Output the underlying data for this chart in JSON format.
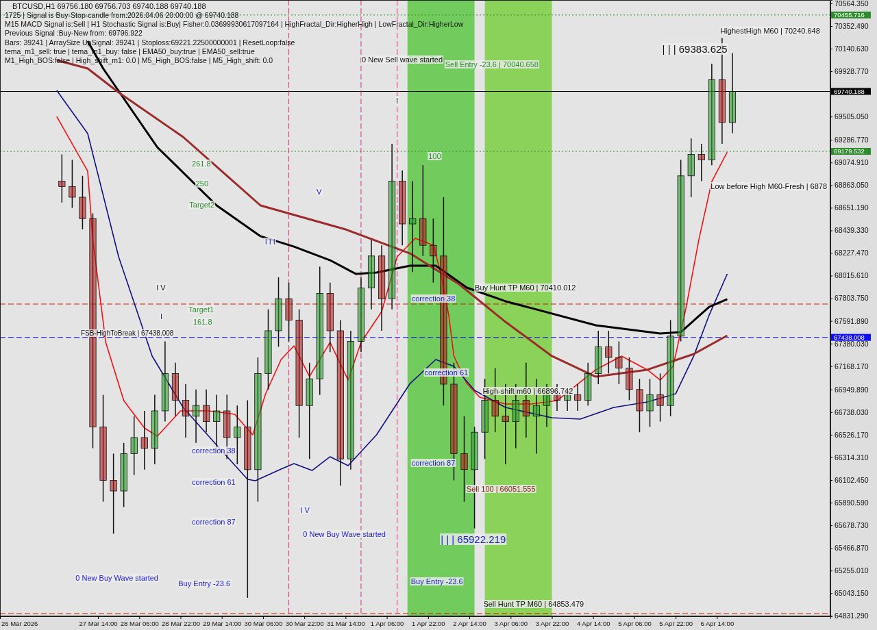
{
  "chart_data": {
    "type": "candlestick",
    "title": "BTCUSD,H1  69756.180 69756.703 69740.188 69740.188",
    "x": [
      "2026-03-27T00:00",
      "2026-03-27T04:00",
      "2026-03-27T08:00",
      "2026-03-27T12:00",
      "2026-03-27T16:00",
      "2026-03-27T20:00",
      "2026-03-28T00:00",
      "2026-03-28T04:00",
      "2026-03-28T08:00",
      "2026-03-28T12:00",
      "2026-03-28T16:00",
      "2026-03-28T20:00",
      "2026-03-29T00:00",
      "2026-03-29T04:00",
      "2026-03-29T08:00",
      "2026-03-29T12:00",
      "2026-03-29T16:00",
      "2026-03-29T20:00",
      "2026-03-30T00:00",
      "2026-03-30T04:00",
      "2026-03-30T08:00",
      "2026-03-30T12:00",
      "2026-03-30T16:00",
      "2026-03-30T20:00",
      "2026-03-31T00:00",
      "2026-03-31T04:00",
      "2026-03-31T08:00",
      "2026-03-31T12:00",
      "2026-03-31T16:00",
      "2026-03-31T20:00",
      "2026-04-01T00:00",
      "2026-04-01T04:00",
      "2026-04-01T08:00",
      "2026-04-01T12:00",
      "2026-04-01T16:00",
      "2026-04-01T20:00",
      "2026-04-02T00:00",
      "2026-04-02T04:00",
      "2026-04-02T08:00",
      "2026-04-02T12:00",
      "2026-04-02T16:00",
      "2026-04-02T20:00",
      "2026-04-03T00:00",
      "2026-04-03T04:00",
      "2026-04-03T08:00",
      "2026-04-03T12:00",
      "2026-04-03T16:00",
      "2026-04-03T20:00",
      "2026-04-04T00:00",
      "2026-04-04T04:00",
      "2026-04-04T08:00",
      "2026-04-04T12:00",
      "2026-04-04T16:00",
      "2026-04-04T20:00",
      "2026-04-05T00:00",
      "2026-04-05T04:00",
      "2026-04-05T08:00",
      "2026-04-05T12:00",
      "2026-04-05T16:00",
      "2026-04-05T20:00",
      "2026-04-06T00:00",
      "2026-04-06T04:00",
      "2026-04-06T08:00",
      "2026-04-06T12:00",
      "2026-04-06T16:00",
      "2026-04-06T20:00"
    ],
    "ohlc": [
      [
        68900,
        69150,
        68700,
        68850
      ],
      [
        68850,
        69100,
        68650,
        68750
      ],
      [
        68750,
        68950,
        68450,
        68550
      ],
      [
        68550,
        68600,
        66400,
        66600
      ],
      [
        66600,
        66900,
        65900,
        66100
      ],
      [
        66100,
        66350,
        65600,
        66000
      ],
      [
        66000,
        66450,
        65850,
        66350
      ],
      [
        66350,
        66700,
        66150,
        66500
      ],
      [
        66500,
        66750,
        66200,
        66400
      ],
      [
        66400,
        66900,
        66250,
        66750
      ],
      [
        66750,
        67400,
        66650,
        67100
      ],
      [
        67100,
        67200,
        66700,
        66850
      ],
      [
        66850,
        67000,
        66500,
        66700
      ],
      [
        66700,
        66950,
        66450,
        66800
      ],
      [
        66800,
        66950,
        66550,
        66650
      ],
      [
        66650,
        66900,
        66400,
        66750
      ],
      [
        66750,
        66900,
        66300,
        66500
      ],
      [
        66500,
        66800,
        66250,
        66600
      ],
      [
        66600,
        66850,
        65000,
        66200
      ],
      [
        66200,
        67250,
        65900,
        67100
      ],
      [
        67100,
        67700,
        66950,
        67500
      ],
      [
        67500,
        68000,
        67350,
        67800
      ],
      [
        67800,
        67950,
        67400,
        67600
      ],
      [
        67600,
        67700,
        66500,
        66800
      ],
      [
        66800,
        67200,
        66300,
        67050
      ],
      [
        67050,
        68100,
        66900,
        67850
      ],
      [
        67850,
        67950,
        67300,
        67500
      ],
      [
        67500,
        67600,
        66050,
        66300
      ],
      [
        66300,
        67500,
        66200,
        67400
      ],
      [
        67400,
        68000,
        67300,
        67900
      ],
      [
        67900,
        68350,
        67700,
        68200
      ],
      [
        68200,
        68300,
        67500,
        67800
      ],
      [
        67800,
        69250,
        67700,
        68900
      ],
      [
        68900,
        69000,
        68300,
        68500
      ],
      [
        68500,
        68900,
        68050,
        68550
      ],
      [
        68550,
        69050,
        68200,
        68300
      ],
      [
        68300,
        68550,
        67950,
        68200
      ],
      [
        68200,
        68750,
        66800,
        67000
      ],
      [
        67000,
        67200,
        66100,
        66350
      ],
      [
        66350,
        66700,
        65900,
        66200
      ],
      [
        66200,
        66600,
        65650,
        66550
      ],
      [
        66550,
        67050,
        66300,
        66850
      ],
      [
        66850,
        67150,
        66550,
        66700
      ],
      [
        66700,
        67000,
        66250,
        66650
      ],
      [
        66650,
        67000,
        66400,
        66850
      ],
      [
        66850,
        67200,
        66500,
        66700
      ],
      [
        66700,
        67050,
        66350,
        66800
      ],
      [
        66800,
        67000,
        66600,
        66900
      ],
      [
        66900,
        67000,
        66750,
        66850
      ],
      [
        66850,
        66950,
        66750,
        66900
      ],
      [
        66900,
        67000,
        66750,
        66850
      ],
      [
        66850,
        67200,
        66800,
        67100
      ],
      [
        67100,
        67500,
        67000,
        67350
      ],
      [
        67350,
        67500,
        67100,
        67250
      ],
      [
        67250,
        67400,
        67000,
        67150
      ],
      [
        67150,
        67250,
        66850,
        66950
      ],
      [
        66950,
        67050,
        66550,
        66750
      ],
      [
        66750,
        67050,
        66600,
        66900
      ],
      [
        66900,
        67100,
        66650,
        66800
      ],
      [
        66800,
        67600,
        66700,
        67450
      ],
      [
        67450,
        69100,
        67400,
        68950
      ],
      [
        68950,
        69300,
        68750,
        69150
      ],
      [
        69150,
        69250,
        68900,
        69100
      ],
      [
        69100,
        70000,
        69050,
        69850
      ],
      [
        69850,
        70240.648,
        69250,
        69450
      ],
      [
        69450,
        70100,
        69350,
        69740.188
      ]
    ],
    "series": [
      {
        "type": "line",
        "color": "#ee1111",
        "x": [
          "2026-03-26T22:00",
          "2026-03-27T10:00",
          "2026-03-27T12:00",
          "2026-03-27T17:00",
          "2026-03-28T00:00",
          "2026-03-28T08:00",
          "2026-03-28T13:00",
          "2026-03-28T22:00",
          "2026-03-29T09:00",
          "2026-03-29T19:00",
          "2026-03-30T02:00",
          "2026-03-30T07:00",
          "2026-03-30T13:00",
          "2026-03-30T18:00",
          "2026-03-31T00:00",
          "2026-03-31T08:00",
          "2026-03-31T15:00",
          "2026-03-31T20:00",
          "2026-04-01T04:00",
          "2026-04-01T10:00",
          "2026-04-01T17:00",
          "2026-04-02T00:00",
          "2026-04-02T03:00",
          "2026-04-02T06:00",
          "2026-04-02T08:00",
          "2026-04-02T13:00",
          "2026-04-02T18:00",
          "2026-04-03T04:00",
          "2026-04-03T14:00",
          "2026-04-04T00:00",
          "2026-04-04T15:00",
          "2026-04-05T01:00",
          "2026-04-05T11:00",
          "2026-04-05T16:00",
          "2026-04-05T21:00",
          "2026-04-06T02:00",
          "2026-04-06T07:00",
          "2026-04-06T12:00",
          "2026-04-06T18:00"
        ],
        "values": [
          69506,
          68994,
          68353,
          67391,
          66846,
          66590,
          66513,
          66750,
          66750,
          66718,
          66526,
          66910,
          67231,
          67359,
          67071,
          67391,
          67038,
          67391,
          67679,
          68192,
          68365,
          68301,
          68032,
          67647,
          67263,
          67006,
          66878,
          66814,
          66814,
          66846,
          67135,
          67263,
          67135,
          67038,
          67167,
          67712,
          68353,
          68897,
          69173
        ]
      },
      {
        "type": "line",
        "color": "#101080",
        "x": [
          "2026-03-26T22:00",
          "2026-03-27T10:00",
          "2026-03-27T22:00",
          "2026-03-28T11:00",
          "2026-03-28T23:00",
          "2026-03-29T12:00",
          "2026-03-30T00:00",
          "2026-03-30T03:00",
          "2026-03-30T13:00",
          "2026-03-30T18:00",
          "2026-03-31T01:00",
          "2026-03-31T08:00",
          "2026-03-31T15:00",
          "2026-04-01T02:00",
          "2026-04-01T15:00",
          "2026-04-02T01:00",
          "2026-04-02T08:00",
          "2026-04-02T16:00",
          "2026-04-03T04:00",
          "2026-04-03T22:00",
          "2026-04-04T09:00",
          "2026-04-04T22:00",
          "2026-04-05T11:00",
          "2026-04-05T22:00",
          "2026-04-06T05:00",
          "2026-04-06T11:00",
          "2026-04-06T18:00"
        ],
        "values": [
          69750,
          69346,
          68192,
          67263,
          66782,
          66430,
          66109,
          66096,
          66205,
          66256,
          66192,
          66321,
          66237,
          66526,
          67006,
          67231,
          67167,
          66942,
          66782,
          66686,
          66673,
          66782,
          66833,
          66910,
          67263,
          67647,
          68032
        ]
      },
      {
        "type": "line",
        "color": "#000000",
        "x": [
          "2026-03-27T10:00",
          "2026-03-27T16:00",
          "2026-03-28T13:00",
          "2026-03-29T12:00",
          "2026-03-30T05:00",
          "2026-03-30T18:00",
          "2026-03-31T08:00",
          "2026-03-31T18:00",
          "2026-04-01T02:00",
          "2026-04-01T15:00",
          "2026-04-02T01:00",
          "2026-04-02T13:00",
          "2026-04-03T04:00",
          "2026-04-03T14:00",
          "2026-04-04T15:00",
          "2026-04-05T16:00",
          "2026-04-06T00:00",
          "2026-04-06T11:00",
          "2026-04-06T18:00"
        ],
        "values": [
          70211,
          69955,
          69218,
          68673,
          68385,
          68288,
          68160,
          68032,
          68045,
          68109,
          68109,
          67904,
          67776,
          67712,
          67551,
          67474,
          67487,
          67724,
          67795
        ]
      },
      {
        "type": "line",
        "color": "#9b2c2c",
        "x": [
          "2026-03-26T22:00",
          "2026-03-27T10:00",
          "2026-03-27T22:00",
          "2026-03-28T23:00",
          "2026-03-30T05:00",
          "2026-03-31T14:00",
          "2026-04-01T15:00",
          "2026-04-02T10:00",
          "2026-04-03T04:00",
          "2026-04-03T22:00",
          "2026-04-04T15:00",
          "2026-04-05T11:00",
          "2026-04-06T05:00",
          "2026-04-06T18:00"
        ],
        "values": [
          70032,
          69955,
          69731,
          69314,
          68673,
          68449,
          68224,
          67936,
          67583,
          67263,
          67070,
          67135,
          67282,
          67455
        ]
      }
    ],
    "xlim": [
      "2026-03-26T00:00",
      "2026-04-08T10:00"
    ],
    "xticks": [
      {
        "value": "2026-03-26",
        "label": "26 Mar 2026"
      },
      {
        "value": "2026-03-27T14:00",
        "label": "27 Mar 14:00"
      },
      {
        "value": "2026-03-28T06:00",
        "label": "28 Mar 06:00"
      },
      {
        "value": "2026-03-28T22:00",
        "label": "28 Mar 22:00"
      },
      {
        "value": "2026-03-29T14:00",
        "label": "29 Mar 14:00"
      },
      {
        "value": "2026-03-30T06:00",
        "label": "30 Mar 06:00"
      },
      {
        "value": "2026-03-30T22:00",
        "label": "30 Mar 22:00"
      },
      {
        "value": "2026-03-31T14:00",
        "label": "31 Mar 14:00"
      },
      {
        "value": "2026-04-01T06:00",
        "label": "1 Apr 06:00"
      },
      {
        "value": "2026-04-01T22:00",
        "label": "1 Apr 22:00"
      },
      {
        "value": "2026-04-02T14:00",
        "label": "2 Apr 14:00"
      },
      {
        "value": "2026-04-03T06:00",
        "label": "3 Apr 06:00"
      },
      {
        "value": "2026-04-03T22:00",
        "label": "3 Apr 22:00"
      },
      {
        "value": "2026-04-04T14:00",
        "label": "4 Apr 14:00"
      },
      {
        "value": "2026-04-05T06:00",
        "label": "5 Apr 06:00"
      },
      {
        "value": "2026-04-05T22:00",
        "label": "5 Apr 22:00"
      },
      {
        "value": "2026-04-06T14:00",
        "label": "6 Apr 14:00"
      }
    ],
    "ylim": [
      64827,
      70596
    ],
    "yticks": [
      {
        "value": 70564.35,
        "label": "70564.350"
      },
      {
        "value": 70352.49,
        "label": "70352.490"
      },
      {
        "value": 70140.63,
        "label": "70140.630"
      },
      {
        "value": 69928.77,
        "label": "69928.770"
      },
      {
        "value": 69505.05,
        "label": "69505.050"
      },
      {
        "value": 69286.77,
        "label": "69286.770"
      },
      {
        "value": 69074.91,
        "label": "69074.910"
      },
      {
        "value": 68863.05,
        "label": "68863.050"
      },
      {
        "value": 68651.19,
        "label": "68651.190"
      },
      {
        "value": 68439.33,
        "label": "68439.330"
      },
      {
        "value": 68227.47,
        "label": "68227.470"
      },
      {
        "value": 68015.61,
        "label": "68015.610"
      },
      {
        "value": 67803.75,
        "label": "67803.750"
      },
      {
        "value": 67591.89,
        "label": "67591.890"
      },
      {
        "value": 67380.03,
        "label": "67380.030"
      },
      {
        "value": 67168.17,
        "label": "67168.170"
      },
      {
        "value": 66949.89,
        "label": "66949.890"
      },
      {
        "value": 66738.03,
        "label": "66738.030"
      },
      {
        "value": 66526.17,
        "label": "66526.170"
      },
      {
        "value": 66314.31,
        "label": "66314.310"
      },
      {
        "value": 66102.45,
        "label": "66102.450"
      },
      {
        "value": 65890.59,
        "label": "65890.590"
      },
      {
        "value": 65678.73,
        "label": "65678.730"
      },
      {
        "value": 65466.87,
        "label": "65466.870"
      },
      {
        "value": 65255.01,
        "label": "65255.010"
      },
      {
        "value": 65043.15,
        "label": "65043.150"
      },
      {
        "value": 64831.29,
        "label": "64831.290"
      }
    ],
    "ref_lines": [
      {
        "axis": "y",
        "value": 70455.716,
        "label": "70455.716",
        "color": "#2e8b2e",
        "line_style": "dotted"
      },
      {
        "axis": "y",
        "value": 69740.188,
        "label": "69740.188",
        "color": "#000000",
        "line_style": "solid"
      },
      {
        "axis": "y",
        "value": 69179.532,
        "label": "69179.532",
        "color": "#2e8b2e",
        "line_style": "dotted"
      },
      {
        "axis": "y",
        "value": 67438.008,
        "label": "67438.008",
        "color": "#1010ee",
        "line_style": "dashed"
      },
      {
        "axis": "y",
        "value": 67750,
        "color": "#cc2200",
        "line_style": "dashed"
      },
      {
        "axis": "y",
        "value": 64853.479,
        "color": "#cc2200",
        "line_style": "dashed"
      },
      {
        "axis": "x",
        "value": "2026-03-30T16:00",
        "color": "#cc3377",
        "line_style": "dashed"
      },
      {
        "axis": "x",
        "value": "2026-03-31T20:00",
        "color": "#cc3377",
        "line_style": "dashed"
      },
      {
        "axis": "x",
        "value": "2026-04-01T10:00",
        "color": "#cc3377",
        "line_style": "dashed"
      }
    ],
    "bands": [
      {
        "axis": "x",
        "from": "2026-04-01T14:00",
        "to": "2026-04-02T16:00",
        "color": "#4cc430"
      },
      {
        "axis": "x",
        "from": "2026-04-02T20:00",
        "to": "2026-04-03T22:00",
        "color": "#6ccc2c"
      }
    ],
    "annotations": [
      "1725 | Signal is Buy-Stop-candle from:2026.04.06 20:00:00 @ 69740.188",
      "M15 MACD Signal is:Sell | H1 Stochastic Signal is:Buy| Fisher:0.03699930617097164 | HighFractal_Dir:HigherHigh | LowFractal_Dir:HigherLow",
      "Previous Signal :Buy-New from: 69796.922",
      "Bars: 39241 | ArraySize UpSignal: 39241 | Stoploss:69221.22500000001 | ResetLoop:false",
      "tema_m1_sell: true | tema_m1_buy: false | EMA50_buy:true | EMA50_sell:true",
      "M1_High_BOS:false | High_shift_m1: 0.0 | M5_High_BOS:false | M5_High_shift: 0.0",
      "0 New Sell wave started",
      "Sell Entry -23.6 | 70040.658",
      "| | | 69383.625",
      "HighestHigh   M60 | 70240.648",
      "261.8",
      "250",
      "Target2",
      "100",
      "Target1",
      "161.8",
      "FSB-HighToBreak | 67438.008",
      "V",
      "I V",
      "I I I",
      "I",
      "I V",
      "I",
      "correction 38",
      "correction 61",
      "correction 87",
      "correction 38",
      "correction 61",
      "correction 87",
      "High-shift m60 | 66896.742",
      "Sell 100 | 66051.555",
      "| | | 65922.219",
      "0 New Buy Wave started",
      "0 New Buy Wave started",
      "Buy Entry -23.6",
      "Buy Entry -23.6",
      "Low before High    M60-Fresh | 6878",
      "Buy Hunt TP M60 | 70410.012",
      "Sell Hunt TP M60 | 64853.479"
    ]
  }
}
